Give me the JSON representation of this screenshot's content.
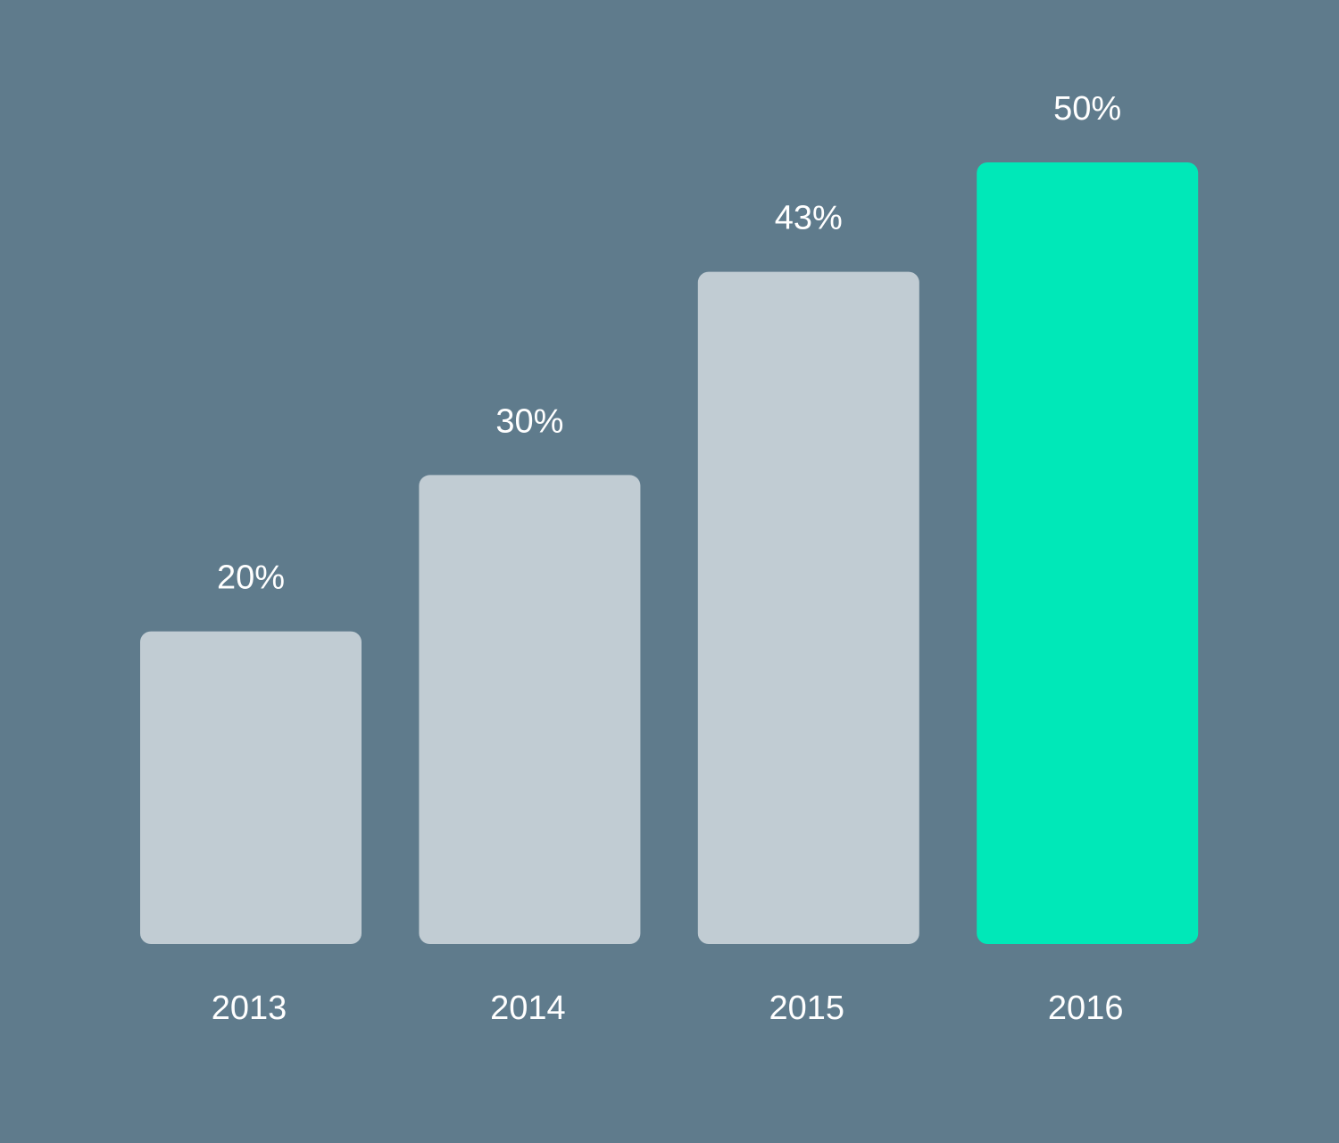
{
  "chart_data": {
    "type": "bar",
    "categories": [
      "2013",
      "2014",
      "2015",
      "2016"
    ],
    "values": [
      20,
      30,
      43,
      50
    ],
    "value_labels": [
      "20%",
      "30%",
      "43%",
      "50%"
    ],
    "colors": [
      "#c1ccd3",
      "#c1ccd3",
      "#c1ccd3",
      "#00e8b8"
    ],
    "background": "#5f7b8c"
  }
}
